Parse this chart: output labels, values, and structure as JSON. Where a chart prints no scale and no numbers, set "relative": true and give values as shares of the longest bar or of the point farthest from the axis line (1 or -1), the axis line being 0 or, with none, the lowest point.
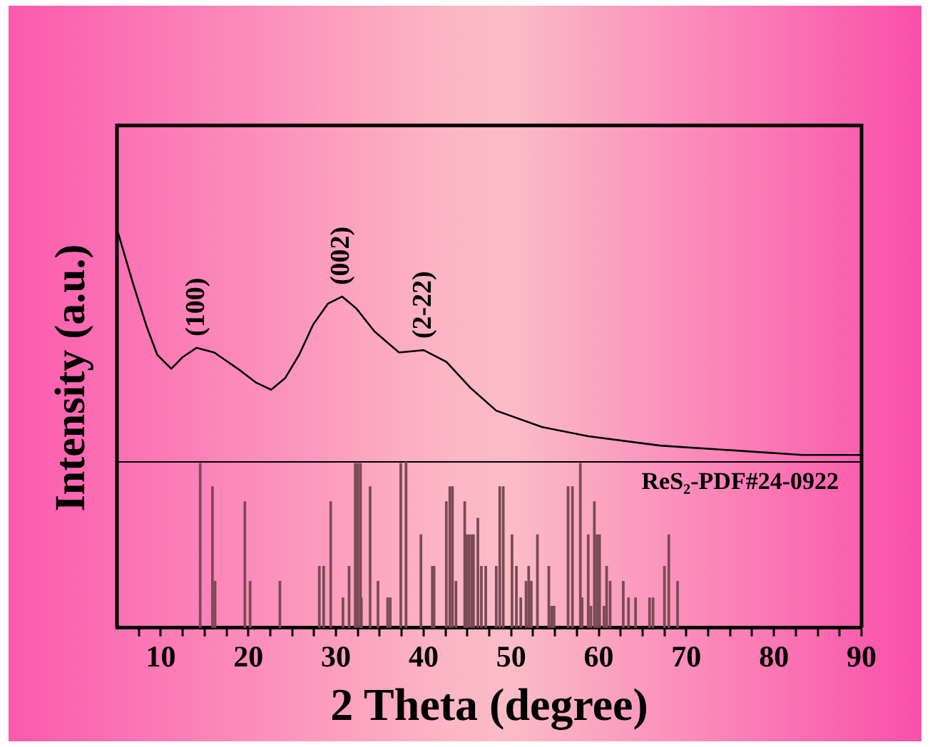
{
  "chart_data": [
    {
      "type": "line",
      "ylabel": "Intensity (a.u.)",
      "relative": true,
      "xlim": [
        5,
        90
      ],
      "tick_labels": false,
      "x": [
        5,
        6.8,
        8.4,
        9.6,
        11.2,
        12.5,
        14.1,
        16.1,
        18.8,
        20.9,
        22.6,
        24.2,
        25.8,
        27.4,
        29.1,
        30.7,
        32.3,
        34.4,
        37.2,
        40.0,
        42.6,
        45.3,
        48.3,
        53.5,
        58.8,
        67.0,
        75.1,
        83.2,
        89.5,
        90
      ],
      "series": [
        {
          "color": "#000000",
          "values": [
            1,
            0.77,
            0.58,
            0.46,
            0.4,
            0.45,
            0.49,
            0.47,
            0.4,
            0.34,
            0.31,
            0.36,
            0.46,
            0.59,
            0.68,
            0.71,
            0.66,
            0.56,
            0.47,
            0.48,
            0.43,
            0.32,
            0.22,
            0.15,
            0.11,
            0.07,
            0.05,
            0.03,
            0.03,
            0.03
          ]
        }
      ],
      "annotations": [
        "(100)",
        "(002)",
        "(2-22)"
      ]
    },
    {
      "type": "bar",
      "xlabel": "2 Theta (degree)",
      "relative": true,
      "xlim": [
        5,
        90
      ],
      "tick_labels": "x",
      "xticks": [
        {
          "value": 7.5,
          "label": null
        },
        10,
        {
          "value": 12.5,
          "label": null
        },
        {
          "value": 15,
          "label": null
        },
        {
          "value": 17.5,
          "label": null
        },
        20,
        {
          "value": 22.5,
          "label": null
        },
        {
          "value": 25,
          "label": null
        },
        {
          "value": 27.5,
          "label": null
        },
        30,
        {
          "value": 32.5,
          "label": null
        },
        {
          "value": 35,
          "label": null
        },
        {
          "value": 37.5,
          "label": null
        },
        40,
        {
          "value": 42.5,
          "label": null
        },
        {
          "value": 45,
          "label": null
        },
        {
          "value": 47.5,
          "label": null
        },
        50,
        {
          "value": 52.5,
          "label": null
        },
        {
          "value": 55,
          "label": null
        },
        {
          "value": 57.5,
          "label": null
        },
        60,
        {
          "value": 62.5,
          "label": null
        },
        {
          "value": 65,
          "label": null
        },
        {
          "value": 67.5,
          "label": null
        },
        70,
        {
          "value": 72.5,
          "label": null
        },
        {
          "value": 75,
          "label": null
        },
        {
          "value": 77.5,
          "label": null
        },
        80,
        {
          "value": 82.5,
          "label": null
        },
        {
          "value": 85,
          "label": null
        },
        {
          "value": 87.5,
          "label": null
        },
        90
      ],
      "x": [
        14.5,
        15.9,
        16.2,
        19.6,
        20.2,
        23.6,
        28.1,
        28.6,
        29.4,
        30.8,
        31.5,
        32.2,
        32.5,
        32.8,
        32.9,
        33.9,
        34.8,
        35.9,
        36.2,
        37.4,
        38.0,
        39.7,
        41.0,
        41.2,
        42.6,
        43.0,
        43.3,
        43.7,
        44.7,
        44.9,
        45.2,
        45.5,
        45.7,
        46.2,
        46.6,
        47.1,
        48.3,
        48.7,
        49.1,
        50.1,
        50.6,
        51.1,
        51.7,
        52.0,
        52.3,
        53.0,
        54.3,
        54.6,
        54.9,
        56.5,
        57.0,
        57.9,
        58.1,
        58.8,
        59.1,
        59.5,
        59.8,
        60.1,
        60.6,
        60.9,
        61.3,
        62.8,
        63.4,
        64.2,
        65.8,
        66.2,
        67.5,
        68.0,
        69.0
      ],
      "series": [
        {
          "name": "ReS₂-PDF#24-0922",
          "color": "#7a4a55",
          "values": [
            0.99,
            0.85,
            0.28,
            0.76,
            0.28,
            0.28,
            0.37,
            0.37,
            0.76,
            0.18,
            0.37,
            0.99,
            0.99,
            0.99,
            0.18,
            0.85,
            0.28,
            0.18,
            0.18,
            0.99,
            1,
            0.56,
            0.37,
            0.37,
            0.76,
            0.85,
            0.85,
            0.28,
            0.76,
            0.56,
            0.56,
            0.56,
            0.56,
            0.66,
            0.37,
            0.37,
            0.37,
            0.85,
            0.85,
            0.56,
            0.37,
            0.18,
            0.28,
            0.37,
            0.28,
            0.56,
            0.37,
            0.13,
            0.13,
            0.85,
            0.85,
            0.99,
            0.18,
            0.56,
            0.13,
            0.76,
            0.56,
            0.56,
            0.13,
            0.37,
            0.28,
            0.28,
            0.18,
            0.18,
            0.18,
            0.18,
            0.37,
            0.56,
            0.28
          ]
        }
      ]
    }
  ]
}
